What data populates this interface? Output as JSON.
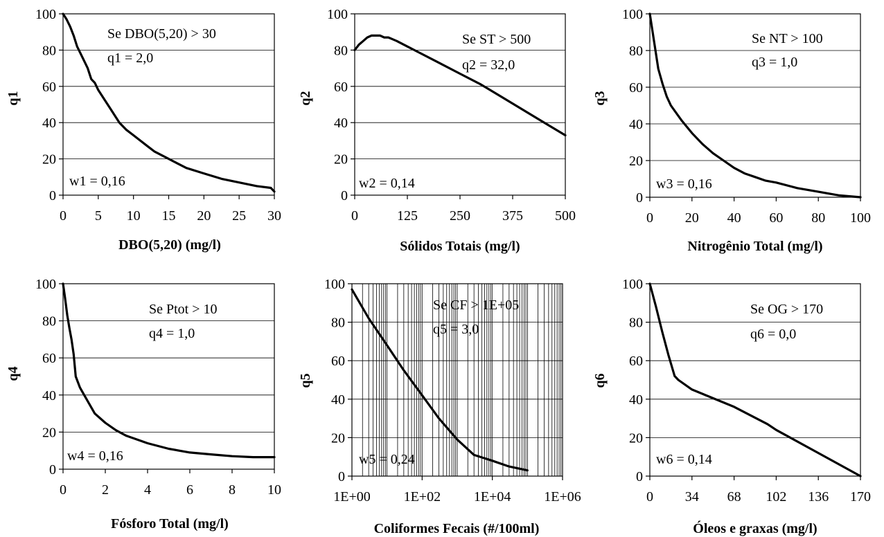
{
  "chart_data": [
    {
      "type": "line",
      "xlabel": "DBO(5,20) (mg/l)",
      "ylabel": "q1",
      "xlim": [
        0,
        30
      ],
      "ylim": [
        0,
        100
      ],
      "xticks": [
        "0",
        "5",
        "10",
        "15",
        "20",
        "25",
        "30"
      ],
      "yticks": [
        "0",
        "20",
        "40",
        "60",
        "80",
        "100"
      ],
      "grid": "horizontal",
      "annotations": [
        "Se DBO(5,20) > 30",
        "q1 = 2,0",
        "w1 = 0,16"
      ],
      "series": [
        {
          "x": [
            0,
            0.5,
            1,
            1.5,
            2,
            2.5,
            3,
            3.5,
            4,
            4.5,
            5,
            6,
            7,
            8,
            9,
            10,
            11,
            12,
            13,
            15,
            17.5,
            20,
            22.5,
            25,
            27.5,
            29.5,
            30
          ],
          "y": [
            100,
            97,
            93,
            88,
            82,
            78,
            74,
            70,
            64,
            62,
            58,
            52,
            46,
            40,
            36,
            33,
            30,
            27,
            24,
            20,
            15,
            12,
            9,
            7,
            5,
            4,
            2
          ]
        }
      ]
    },
    {
      "type": "line",
      "xlabel": "Sólidos Totais (mg/l)",
      "ylabel": "q2",
      "xlim": [
        0,
        500
      ],
      "ylim": [
        0,
        100
      ],
      "xticks": [
        "0",
        "125",
        "250",
        "375",
        "500"
      ],
      "yticks": [
        "0",
        "20",
        "40",
        "60",
        "80",
        "100"
      ],
      "grid": "horizontal",
      "annotations": [
        "Se ST > 500",
        "q2 = 32,0",
        "w2 = 0,14"
      ],
      "series": [
        {
          "x": [
            0,
            10,
            20,
            30,
            40,
            50,
            60,
            70,
            80,
            90,
            100,
            125,
            150,
            200,
            250,
            300,
            350,
            400,
            450,
            500
          ],
          "y": [
            80,
            83,
            85,
            87,
            88,
            88,
            88,
            87,
            87,
            86,
            85,
            82,
            79,
            73,
            67,
            61,
            54,
            47,
            40,
            33
          ]
        }
      ]
    },
    {
      "type": "line",
      "xlabel": "Nitrogênio Total (mg/l)",
      "ylabel": "q3",
      "xlim": [
        0,
        100
      ],
      "ylim": [
        0,
        100
      ],
      "xticks": [
        "0",
        "20",
        "40",
        "60",
        "80",
        "100"
      ],
      "yticks": [
        "0",
        "20",
        "40",
        "60",
        "80",
        "100"
      ],
      "grid": "horizontal",
      "annotations": [
        "Se NT > 100",
        "q3 = 1,0",
        "w3 = 0,16"
      ],
      "series": [
        {
          "x": [
            0,
            2,
            4,
            6,
            8,
            10,
            15,
            20,
            25,
            30,
            35,
            40,
            45,
            50,
            55,
            60,
            70,
            80,
            90,
            100
          ],
          "y": [
            100,
            85,
            70,
            62,
            55,
            50,
            42,
            35,
            29,
            24,
            20,
            16,
            13,
            11,
            9,
            8,
            5,
            3,
            1,
            0
          ]
        }
      ]
    },
    {
      "type": "line",
      "xlabel": "Fósforo Total (mg/l)",
      "ylabel": "q4",
      "xlim": [
        0,
        10
      ],
      "ylim": [
        0,
        100
      ],
      "xticks": [
        "0",
        "2",
        "4",
        "6",
        "8",
        "10"
      ],
      "yticks": [
        "0",
        "20",
        "40",
        "60",
        "80",
        "100"
      ],
      "grid": "horizontal",
      "annotations": [
        "Se Ptot > 10",
        "q4 = 1,0",
        "w4 = 0,16"
      ],
      "series": [
        {
          "x": [
            0,
            0.1,
            0.2,
            0.3,
            0.4,
            0.5,
            0.6,
            0.8,
            1,
            1.5,
            2,
            2.5,
            3,
            3.5,
            4,
            5,
            6,
            7,
            8,
            9,
            10
          ],
          "y": [
            100,
            92,
            83,
            76,
            70,
            62,
            50,
            44,
            40,
            30,
            25,
            21,
            18,
            16,
            14,
            11,
            9,
            8,
            7,
            6.5,
            6.5
          ]
        }
      ]
    },
    {
      "type": "line",
      "xlabel": "Coliformes Fecais (#/100ml)",
      "ylabel": "q5",
      "xscale": "log",
      "xlim": [
        1,
        1000000
      ],
      "ylim": [
        0,
        100
      ],
      "xticks": [
        "1E+00",
        "1E+02",
        "1E+04",
        "1E+06"
      ],
      "yticks": [
        "0",
        "20",
        "40",
        "60",
        "80",
        "100"
      ],
      "grid": "both",
      "annotations": [
        "Se CF > 1E+05",
        "q5 = 3,0",
        "w5 = 0,24"
      ],
      "series": [
        {
          "x": [
            1,
            3,
            10,
            30,
            100,
            300,
            1000,
            3000,
            10000,
            30000,
            100000
          ],
          "y": [
            97,
            82,
            68,
            55,
            42,
            30,
            19,
            11,
            8,
            5,
            3
          ]
        }
      ]
    },
    {
      "type": "line",
      "xlabel": "Óleos e graxas (mg/l)",
      "ylabel": "q6",
      "xlim": [
        0,
        170
      ],
      "ylim": [
        0,
        100
      ],
      "xticks": [
        "0",
        "34",
        "68",
        "102",
        "136",
        "170"
      ],
      "yticks": [
        "0",
        "20",
        "40",
        "60",
        "80",
        "100"
      ],
      "grid": "horizontal",
      "annotations": [
        "Se OG > 170",
        "q6 = 0,0",
        "w6 = 0,14"
      ],
      "series": [
        {
          "x": [
            0,
            5,
            10,
            15,
            20,
            23,
            34,
            68,
            95,
            102,
            136,
            170
          ],
          "y": [
            100,
            88,
            75,
            63,
            52,
            50,
            45,
            36,
            27,
            24,
            12,
            0
          ]
        }
      ]
    }
  ]
}
